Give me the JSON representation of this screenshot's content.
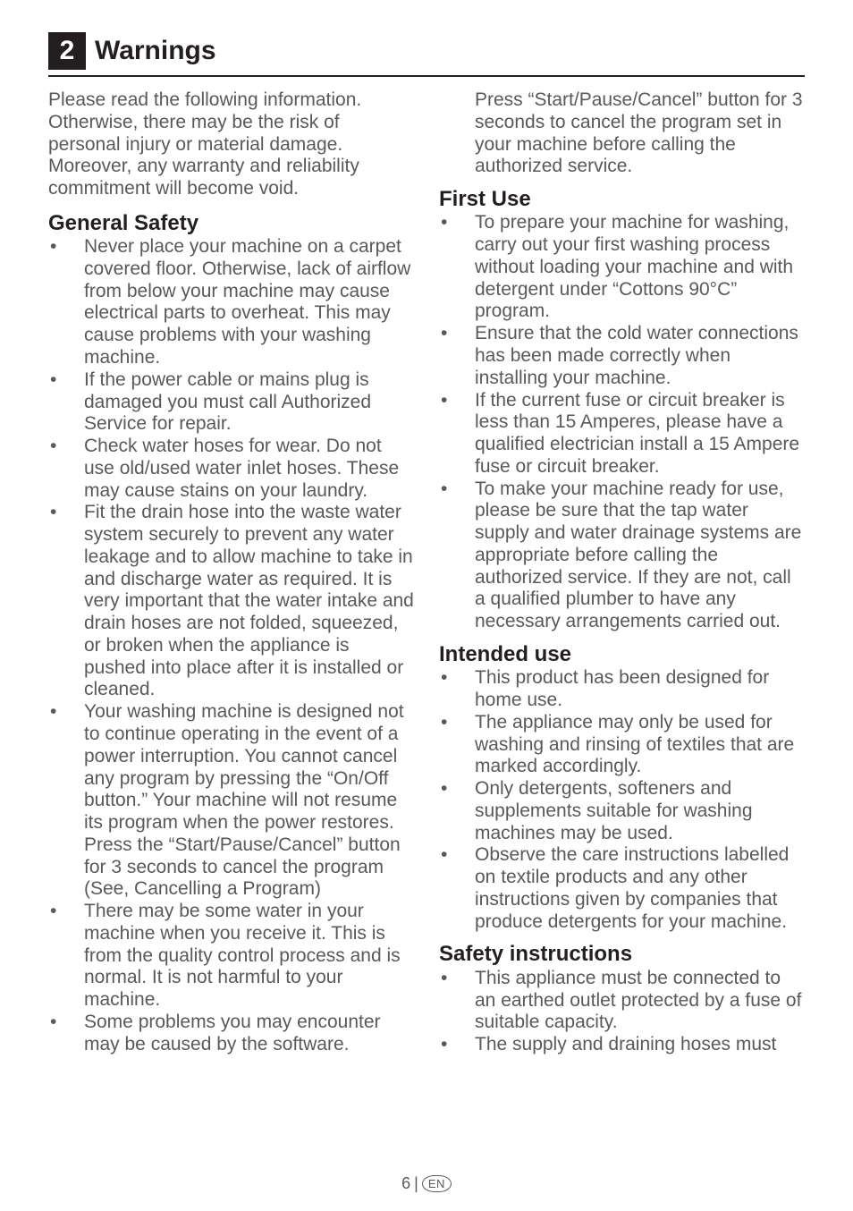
{
  "chapter": {
    "number": "2",
    "title": "Warnings"
  },
  "left": {
    "intro": "Please read the following information. Otherwise, there may be the risk of personal injury or material damage. Moreover, any warranty and reliability commitment will become void.",
    "general_safety": {
      "heading": "General Safety",
      "items": [
        "Never place your machine on a carpet covered floor. Otherwise, lack of airflow from below your machine may cause electrical parts to overheat. This may cause problems with your washing machine.",
        "If the power cable or mains plug is damaged you must call Authorized Service for repair.",
        "Check water hoses for wear. Do not use old/used water inlet hoses. These may cause stains on your laundry.",
        "Fit the drain hose into the waste water system securely to prevent any water leakage and to allow machine to take in and discharge water as required. It is very important that the water intake and drain hoses are not folded, squeezed, or broken when the appliance is pushed into place after it is installed or cleaned.",
        "Your washing machine is designed not to continue operating in the event of a power interruption. You cannot cancel any program by pressing the “On/Off button.” Your machine will not resume its program when the power restores. Press the “Start/Pause/Cancel” button for 3 seconds to cancel the program (See, Cancelling a Program)",
        "There may be some water in your machine when you receive it. This is from the quality control process and is normal. It is not harmful to your machine.",
        "Some problems you may encounter may be caused by the software."
      ]
    }
  },
  "right": {
    "continuation": "Press “Start/Pause/Cancel” button for 3 seconds to cancel the program set in your machine before calling the authorized service.",
    "first_use": {
      "heading": "First Use",
      "items": [
        "To prepare your machine for washing, carry out your first washing process without loading your machine and with detergent under “Cottons 90°C” program.",
        "Ensure that the cold water connections has been made correctly when installing your machine.",
        "If the current fuse or circuit breaker is less than 15 Amperes, please have a qualified electrician install a 15 Ampere fuse or circuit breaker.",
        "To make your machine ready for use, please be sure that the tap water supply and water drainage systems are appropriate before calling the authorized service. If they are not, call a qualified plumber to have any necessary arrangements carried out."
      ]
    },
    "intended_use": {
      "heading": "Intended use",
      "items": [
        "This product has been designed for home use.",
        "The appliance may only be used for washing and rinsing of textiles that are marked accordingly.",
        "Only detergents, softeners and supplements suitable for washing machines may be used.",
        "Observe the care instructions labelled on textile products and any other instructions given by companies that produce detergents for your machine."
      ]
    },
    "safety_instructions": {
      "heading": "Safety instructions",
      "items": [
        "This appliance must be connected to an earthed outlet protected by a fuse of suitable capacity.",
        "The supply and draining hoses must"
      ]
    }
  },
  "footer": {
    "page": "6",
    "lang": "EN"
  }
}
